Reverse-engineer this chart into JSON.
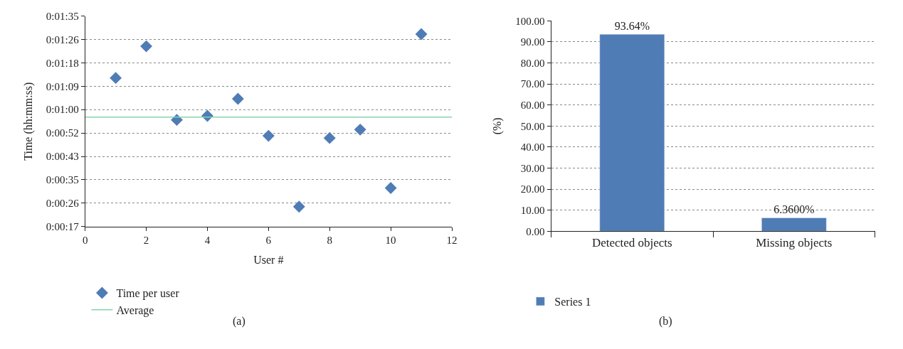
{
  "chart_data": [
    {
      "type": "scatter",
      "xlabel": "User #",
      "ylabel": "Time (hh:mm:ss)",
      "annotations": [
        "(a)"
      ],
      "xlim": [
        0,
        12
      ],
      "xticks": [
        0,
        2,
        4,
        6,
        8,
        10,
        12
      ],
      "ylim": [
        17.28,
        95.04
      ],
      "yticks": [
        {
          "value": 17.28,
          "label": "0:00:17"
        },
        {
          "value": 25.92,
          "label": "0:00:26"
        },
        {
          "value": 34.56,
          "label": "0:00:35"
        },
        {
          "value": 43.2,
          "label": "0:00:43"
        },
        {
          "value": 51.84,
          "label": "0:00:52"
        },
        {
          "value": 60.48,
          "label": "0:01:00"
        },
        {
          "value": 69.12,
          "label": "0:01:09"
        },
        {
          "value": 77.76,
          "label": "0:01:18"
        },
        {
          "value": 86.4,
          "label": "0:01:26"
        },
        {
          "value": 95.04,
          "label": "0:01:35"
        }
      ],
      "grid": "y",
      "legend": "bottom left",
      "series": [
        {
          "name": "Time per user",
          "type": "scatter",
          "marker": "diamond",
          "color": "#4f7cb5",
          "x": [
            1,
            2,
            3,
            4,
            5,
            6,
            7,
            8,
            9,
            10,
            11
          ],
          "values": [
            72.2,
            83.9,
            56.7,
            58.2,
            64.5,
            50.8,
            24.6,
            50.0,
            53.1,
            31.5,
            88.4
          ]
        },
        {
          "name": "Average",
          "type": "line",
          "color": "#86d4ab",
          "x": [
            0,
            12
          ],
          "values": [
            57.7,
            57.7
          ]
        }
      ]
    },
    {
      "type": "bar",
      "ylabel": "(%)",
      "annotations": [
        "(b)"
      ],
      "categories": [
        "Detected objects",
        "Missing objects"
      ],
      "ylim": [
        0,
        100
      ],
      "yticks": [
        {
          "value": 0,
          "label": "0.00"
        },
        {
          "value": 10,
          "label": "10.00"
        },
        {
          "value": 20,
          "label": "20.00"
        },
        {
          "value": 30,
          "label": "30.00"
        },
        {
          "value": 40,
          "label": "40.00"
        },
        {
          "value": 50,
          "label": "50.00"
        },
        {
          "value": 60,
          "label": "60.00"
        },
        {
          "value": 70,
          "label": "70.00"
        },
        {
          "value": 80,
          "label": "80.00"
        },
        {
          "value": 90,
          "label": "90.00"
        },
        {
          "value": 100,
          "label": "100.00"
        }
      ],
      "grid": "y",
      "legend": "bottom left",
      "series": [
        {
          "name": "Series 1",
          "color": "#4f7cb5",
          "values": [
            93.64,
            6.36
          ],
          "value_labels": [
            "93.64%",
            "6.3600%"
          ]
        }
      ]
    }
  ]
}
